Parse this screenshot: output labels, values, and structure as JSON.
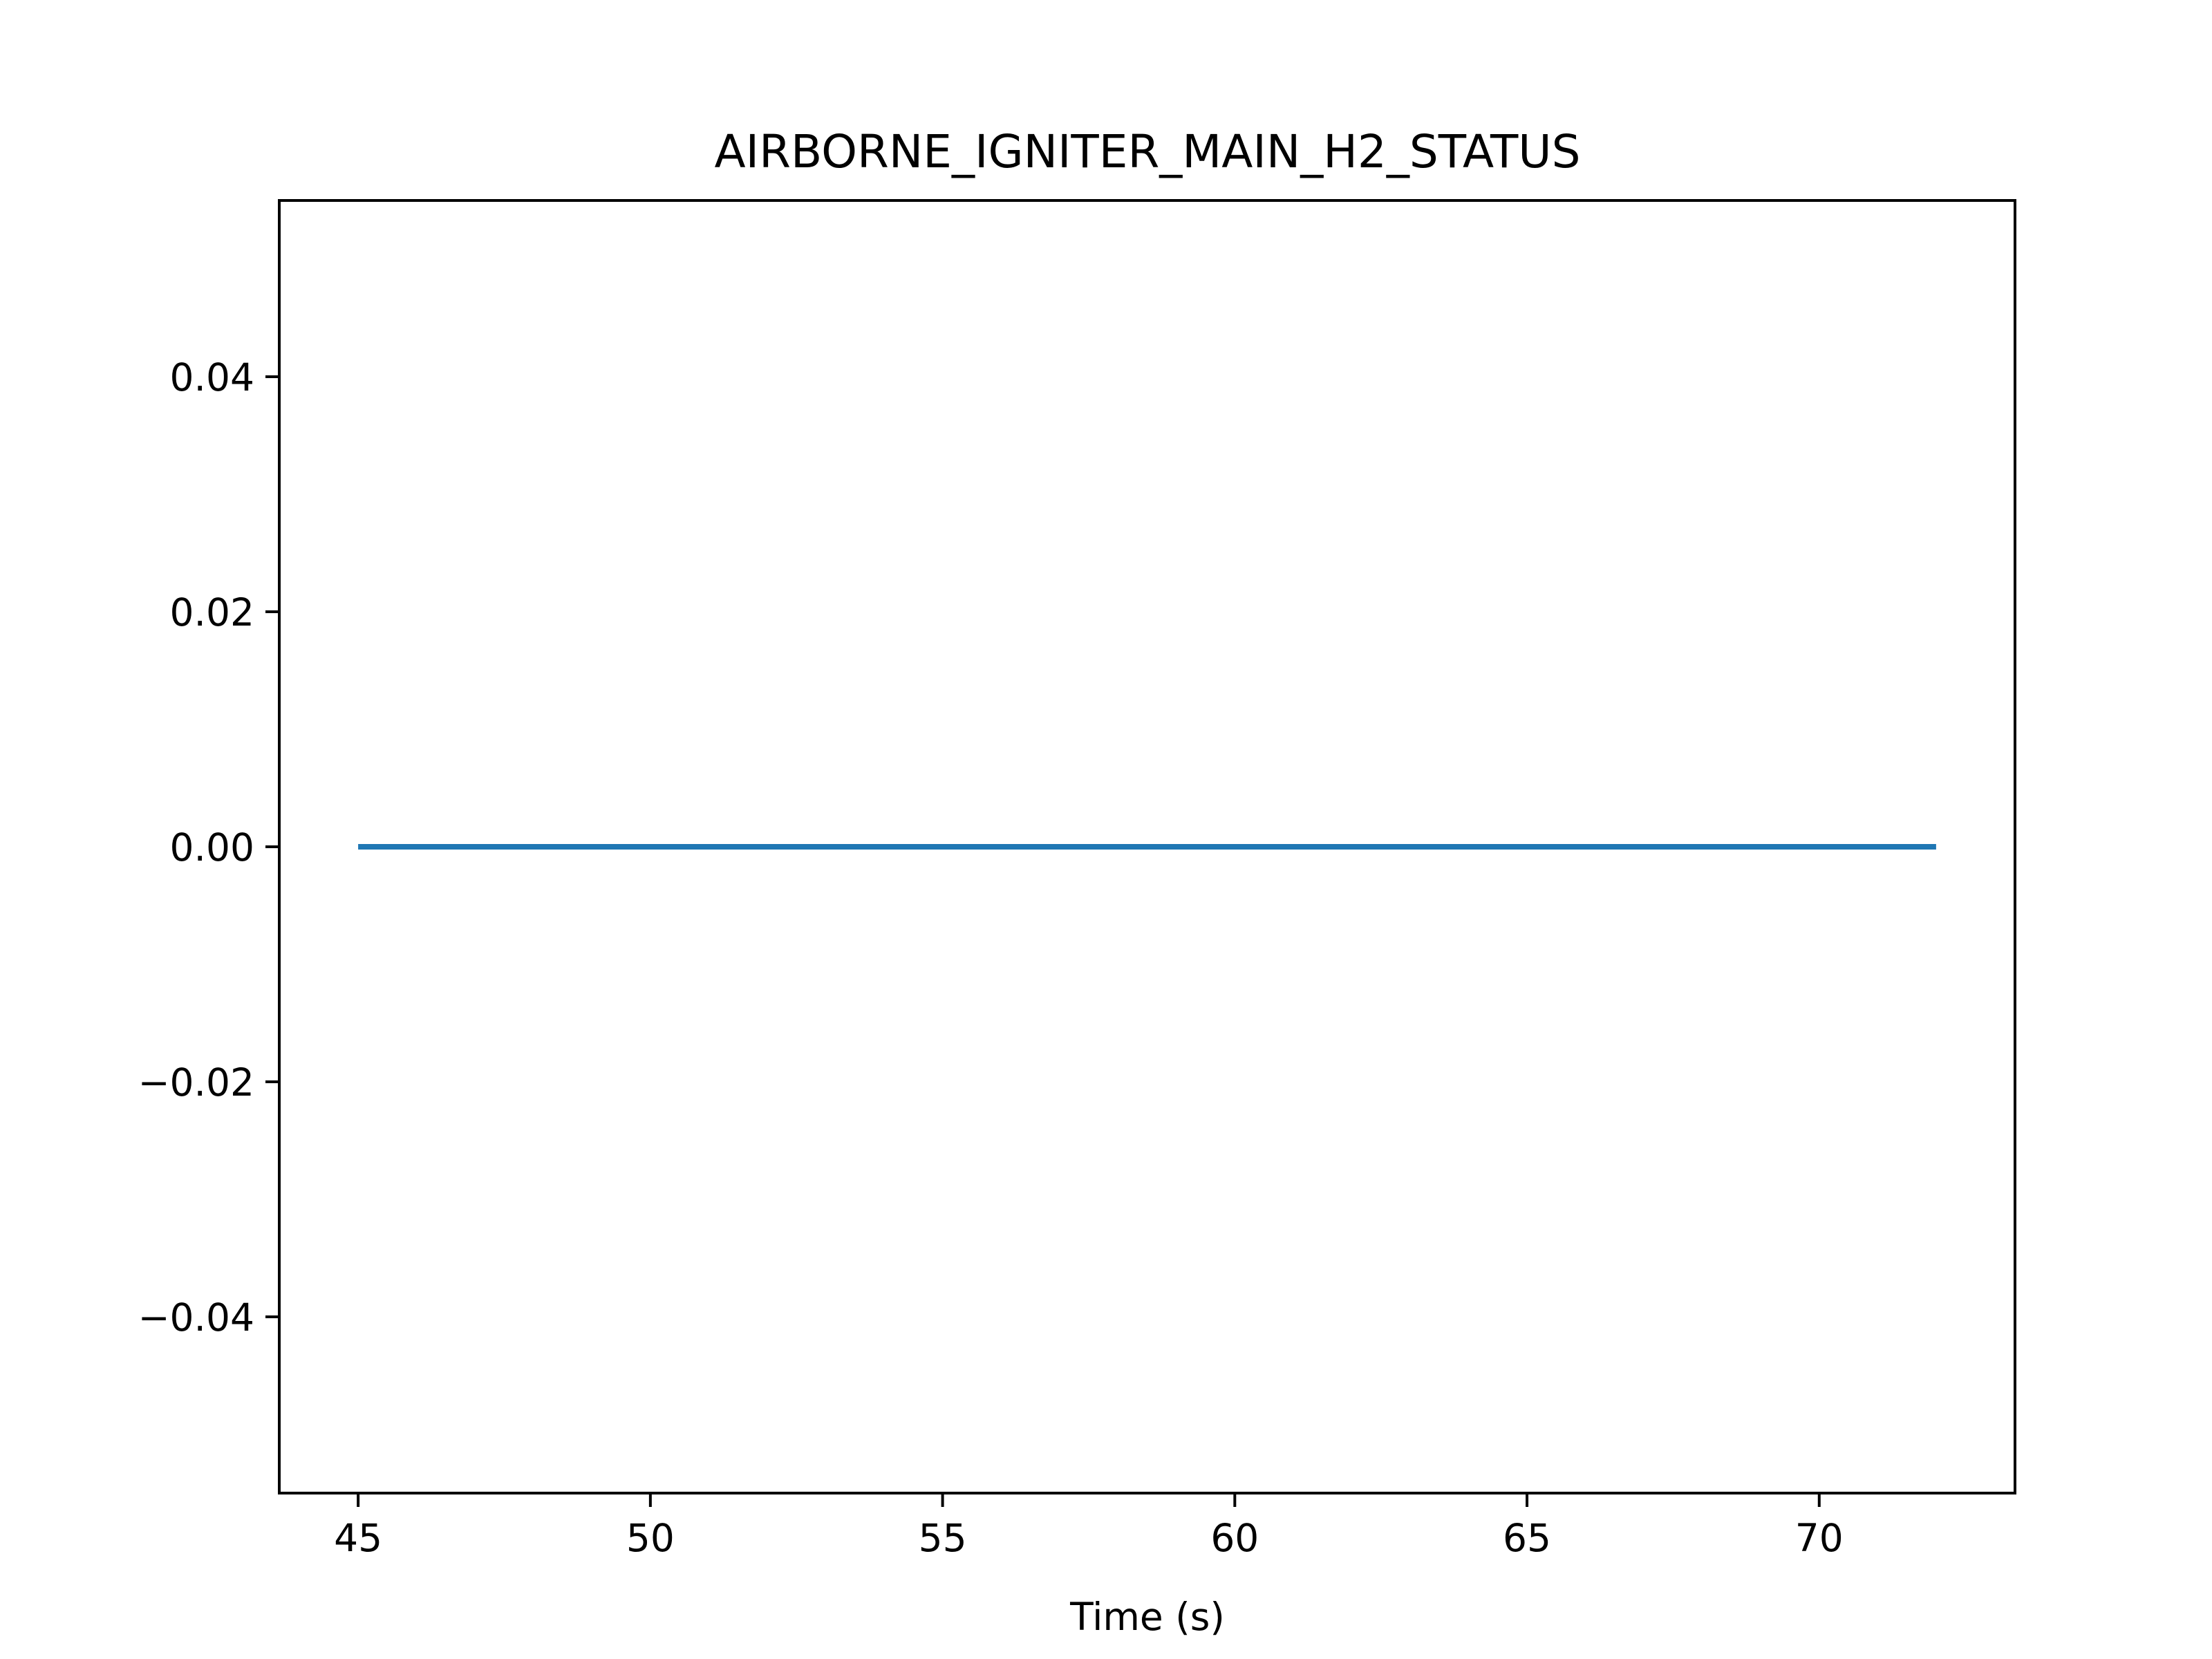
{
  "chart_data": {
    "type": "line",
    "title": "AIRBORNE_IGNITER_MAIN_H2_STATUS",
    "xlabel": "Time (s)",
    "ylabel": "",
    "xlim": [
      43.65,
      73.35
    ],
    "ylim": [
      -0.055,
      0.055
    ],
    "xticks": [
      45,
      50,
      55,
      60,
      65,
      70
    ],
    "yticks": [
      -0.04,
      -0.02,
      0.0,
      0.02,
      0.04
    ],
    "xtick_labels": [
      "45",
      "50",
      "55",
      "60",
      "65",
      "70"
    ],
    "ytick_labels": [
      "−0.04",
      "−0.02",
      "0.00",
      "0.02",
      "0.04"
    ],
    "grid": false,
    "legend": "none",
    "series": [
      {
        "color": "#1f77b4",
        "x": [
          45,
          72
        ],
        "y": [
          0,
          0
        ]
      }
    ]
  }
}
